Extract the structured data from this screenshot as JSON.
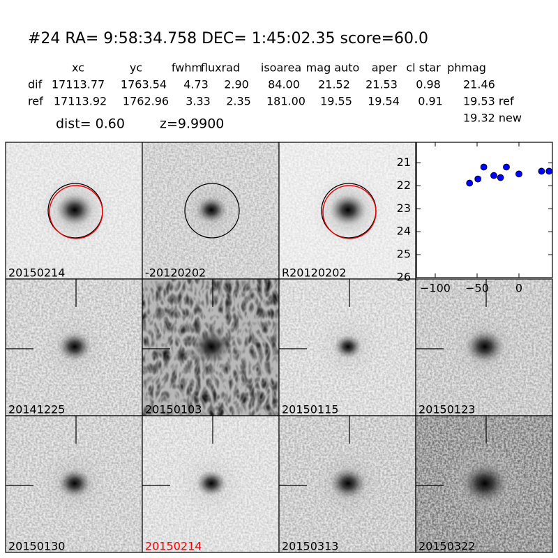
{
  "header": {
    "title": "#24   RA= 9:58:34.758 DEC= 1:45:02.35      score=60.0"
  },
  "table": {
    "columns": [
      "xc",
      "yc",
      "fwhm",
      "fluxrad",
      "isoarea",
      "mag auto",
      "aper",
      "cl star",
      "phmag"
    ],
    "rows": [
      [
        "dif",
        "17113.77",
        "1763.54",
        "4.73",
        "2.90",
        "84.00",
        "21.52",
        "21.53",
        "0.98",
        "21.46"
      ],
      [
        "ref",
        "17113.92",
        "1762.96",
        "3.33",
        "2.35",
        "181.00",
        "19.55",
        "19.54",
        "0.91",
        "19.53 ref"
      ]
    ],
    "extra": "19.32 new"
  },
  "summary": {
    "dist": "dist=  0.60",
    "z": "z=9.9900"
  },
  "panels": [
    {
      "label": "20150214",
      "color": "#000000"
    },
    {
      "label": "-20120202",
      "color": "#000000"
    },
    {
      "label": "R20120202",
      "color": "#000000"
    },
    {
      "label": "20141225",
      "color": "#000000"
    },
    {
      "label": "20150103",
      "color": "#000000"
    },
    {
      "label": "20150115",
      "color": "#000000"
    },
    {
      "label": "20150123",
      "color": "#000000"
    },
    {
      "label": "20150130",
      "color": "#000000"
    },
    {
      "label": "20150214",
      "color": "#ff0000"
    },
    {
      "label": "20150313",
      "color": "#000000"
    },
    {
      "label": "20150322",
      "color": "#000000"
    }
  ],
  "chart_data": {
    "type": "scatter",
    "color": "#0000ff",
    "x": [
      -59,
      -49,
      -42,
      -30,
      -22,
      -15,
      0,
      27,
      36
    ],
    "values": [
      21.88,
      21.7,
      21.18,
      21.55,
      21.64,
      21.18,
      21.48,
      21.36,
      21.36
    ],
    "xlim": [
      -122.5,
      40
    ],
    "ylim": [
      26,
      20.1
    ],
    "xticks": [
      {
        "value": -100,
        "label": "−100"
      },
      {
        "value": -50,
        "label": "−50"
      },
      0
    ],
    "yticks": [
      21,
      22,
      23,
      24,
      25,
      26
    ]
  }
}
